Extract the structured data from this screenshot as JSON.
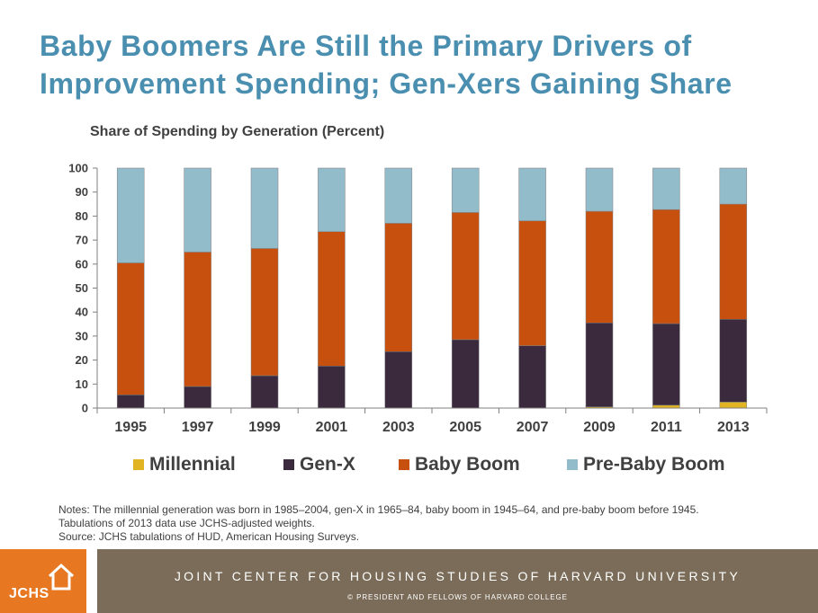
{
  "title_lines": [
    "Baby Boomers Are Still the Primary Drivers of",
    "Improvement Spending; Gen-Xers Gaining Share"
  ],
  "chart_data": {
    "type": "bar",
    "stacked": true,
    "title": "Share of Spending by Generation (Percent)",
    "xlabel": "",
    "ylabel": "",
    "categories": [
      "1995",
      "1997",
      "1999",
      "2001",
      "2003",
      "2005",
      "2007",
      "2009",
      "2011",
      "2013"
    ],
    "ylim": [
      0,
      100
    ],
    "yticks": [
      0,
      10,
      20,
      30,
      40,
      50,
      60,
      70,
      80,
      90,
      100
    ],
    "grid": false,
    "legend_position": "bottom",
    "series": [
      {
        "name": "Millennial",
        "color": "#e0b422",
        "values": [
          0,
          0,
          0,
          0,
          0,
          0,
          0,
          0.5,
          1.2,
          2.5
        ]
      },
      {
        "name": "Gen-X",
        "color": "#3b2a3e",
        "values": [
          5.5,
          9,
          13.5,
          17.5,
          23.5,
          28.5,
          26,
          35,
          34,
          34.5
        ]
      },
      {
        "name": "Baby Boom",
        "color": "#c8500e",
        "values": [
          55,
          56,
          53,
          56,
          53.5,
          53,
          52,
          46.5,
          47.5,
          48
        ]
      },
      {
        "name": "Pre-Baby Boom",
        "color": "#93bccb",
        "values": [
          39.5,
          35,
          33.5,
          26.5,
          23,
          18.5,
          22,
          18,
          17.3,
          15
        ]
      }
    ]
  },
  "notes": [
    "Notes: The millennial generation was born in 1985–2004, gen-X in 1965–84, baby boom in 1945–64, and pre-baby boom before 1945.",
    "Tabulations of 2013 data use JCHS-adjusted weights.",
    "Source: JCHS tabulations of HUD, American Housing Surveys."
  ],
  "footer": {
    "logo_text": "JCHS",
    "logo_icon": "house-outline-icon",
    "logo_color": "#e87722",
    "band_color": "#7a6c58",
    "institution": "JOINT CENTER FOR HOUSING STUDIES OF HARVARD UNIVERSITY",
    "copyright": "© PRESIDENT AND FELLOWS OF HARVARD COLLEGE"
  }
}
